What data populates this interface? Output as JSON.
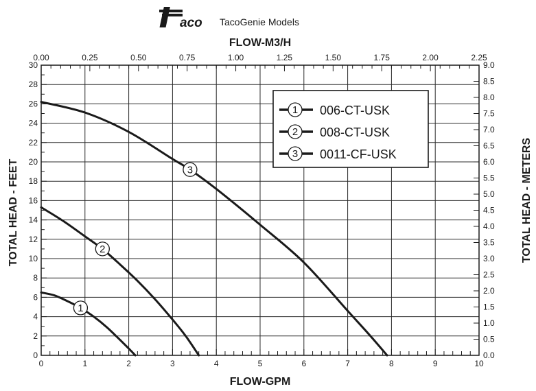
{
  "header": {
    "logo_text": "aco",
    "title": "TacoGenie Models"
  },
  "chart_data": {
    "type": "line",
    "title": "TacoGenie Models",
    "xlabel": "FLOW-GPM",
    "ylabel": "TOTAL HEAD - FEET",
    "x2label": "FLOW-M3/H",
    "y2label": "TOTAL HEAD - METERS",
    "xlim": [
      0,
      10
    ],
    "ylim": [
      0,
      30
    ],
    "x2lim": [
      0,
      2.25
    ],
    "y2lim": [
      0,
      9.0
    ],
    "xticks": [
      0,
      1,
      2,
      3,
      4,
      5,
      6,
      7,
      8,
      9,
      10
    ],
    "xtick_labels": [
      "0",
      "1",
      "2",
      "3",
      "4",
      "5",
      "6",
      "7",
      "8",
      "9",
      "10"
    ],
    "yticks": [
      0,
      2,
      4,
      6,
      8,
      10,
      12,
      14,
      16,
      18,
      20,
      22,
      24,
      26,
      28,
      30
    ],
    "ytick_labels": [
      "0",
      "2",
      "4",
      "6",
      "8",
      "10",
      "12",
      "14",
      "16",
      "18",
      "20",
      "22",
      "24",
      "26",
      "28",
      "30"
    ],
    "x2ticks": [
      0,
      0.25,
      0.5,
      0.75,
      1.0,
      1.25,
      1.5,
      1.75,
      2.0,
      2.25
    ],
    "x2tick_labels": [
      "0.00",
      "0.25",
      "0.50",
      "0.75",
      "1.00",
      "1.25",
      "1.50",
      "1.75",
      "2.00",
      "2.25"
    ],
    "y2ticks": [
      0,
      0.5,
      1.0,
      1.5,
      2.0,
      2.5,
      3.0,
      3.5,
      4.0,
      4.5,
      5.0,
      5.5,
      6.0,
      6.5,
      7.0,
      7.5,
      8.0,
      8.5,
      9.0
    ],
    "y2tick_labels": [
      "0.0",
      "0.5",
      "1.0",
      "1.5",
      "2.0",
      "2.5",
      "3.0",
      "3.5",
      "4.0",
      "4.5",
      "5.0",
      "5.5",
      "6.0",
      "6.5",
      "7.0",
      "7.5",
      "8.0",
      "8.5",
      "9.0"
    ],
    "grid": true,
    "legend_position": "top-right",
    "series": [
      {
        "name": "006-CT-USK",
        "marker": "1",
        "marker_at": [
          0.9,
          4.9
        ],
        "x": [
          0,
          0.3,
          0.6,
          0.9,
          1.2,
          1.5,
          1.8,
          2.0,
          2.15
        ],
        "y": [
          6.5,
          6.2,
          5.6,
          4.9,
          4.0,
          2.9,
          1.6,
          0.7,
          0
        ]
      },
      {
        "name": "008-CT-USK",
        "marker": "2",
        "marker_at": [
          1.4,
          11.0
        ],
        "x": [
          0,
          0.5,
          1.0,
          1.4,
          1.8,
          2.2,
          2.6,
          3.0,
          3.3,
          3.6
        ],
        "y": [
          15.3,
          13.9,
          12.3,
          11.0,
          9.4,
          7.7,
          5.8,
          3.7,
          2.0,
          0
        ]
      },
      {
        "name": "0011-CF-USK",
        "marker": "3",
        "marker_at": [
          3.4,
          19.2
        ],
        "x": [
          0,
          1,
          2,
          3,
          3.4,
          4,
          5,
          6,
          7,
          7.5,
          7.9
        ],
        "y": [
          26.2,
          25.1,
          23.1,
          20.3,
          19.2,
          17.2,
          13.5,
          9.6,
          4.6,
          2.1,
          0
        ]
      }
    ]
  }
}
